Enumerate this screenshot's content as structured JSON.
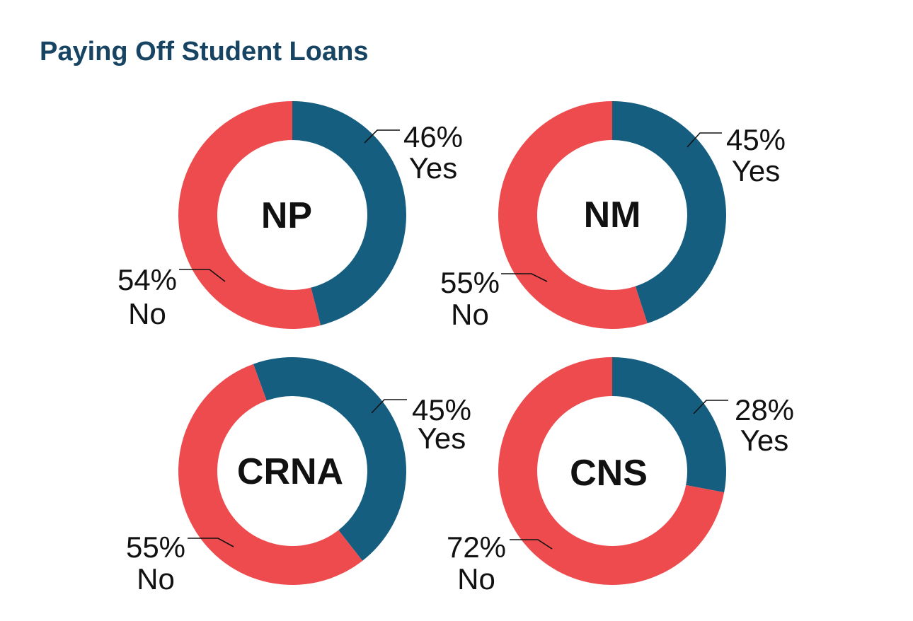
{
  "title": "Paying Off Student Loans",
  "colors": {
    "yes": "#155e80",
    "no": "#ee4b4e",
    "title": "#174463"
  },
  "chart_data": [
    {
      "type": "pie",
      "center_label": "NP",
      "slices": [
        {
          "label": "Yes",
          "value": 46,
          "display": "46%"
        },
        {
          "label": "No",
          "value": 54,
          "display": "54%"
        }
      ]
    },
    {
      "type": "pie",
      "center_label": "NM",
      "slices": [
        {
          "label": "Yes",
          "value": 45,
          "display": "45%"
        },
        {
          "label": "No",
          "value": 55,
          "display": "55%"
        }
      ]
    },
    {
      "type": "pie",
      "center_label": "CRNA",
      "slices": [
        {
          "label": "Yes",
          "value": 45,
          "display": "45%"
        },
        {
          "label": "No",
          "value": 55,
          "display": "55%"
        }
      ]
    },
    {
      "type": "pie",
      "center_label": "CNS",
      "slices": [
        {
          "label": "Yes",
          "value": 28,
          "display": "28%"
        },
        {
          "label": "No",
          "value": 72,
          "display": "72%"
        }
      ]
    }
  ]
}
